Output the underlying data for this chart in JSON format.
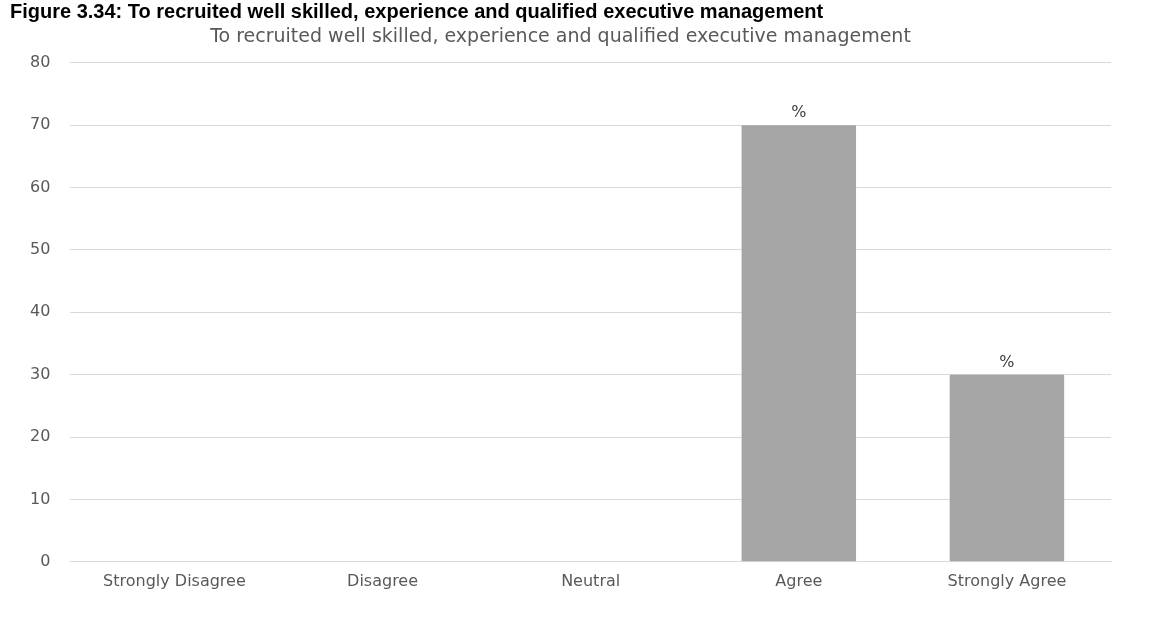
{
  "chart_data": {
    "type": "bar",
    "title": "Figure 3.34: To recruited well skilled, experience and qualified executive management",
    "subtitle": "To recruited well skilled, experience and qualified executive management",
    "categories": [
      "Strongly Disagree",
      "Disagree",
      "Neutral",
      "Agree",
      "Strongly Agree"
    ],
    "values": [
      0,
      0,
      0,
      70,
      30
    ],
    "value_labels": [
      null,
      null,
      null,
      "%",
      "%"
    ],
    "color": "#a5a5a5",
    "ylim": [
      0,
      80
    ],
    "yticks": [
      0,
      10,
      20,
      30,
      40,
      50,
      60,
      70,
      80
    ],
    "grid": "y"
  }
}
